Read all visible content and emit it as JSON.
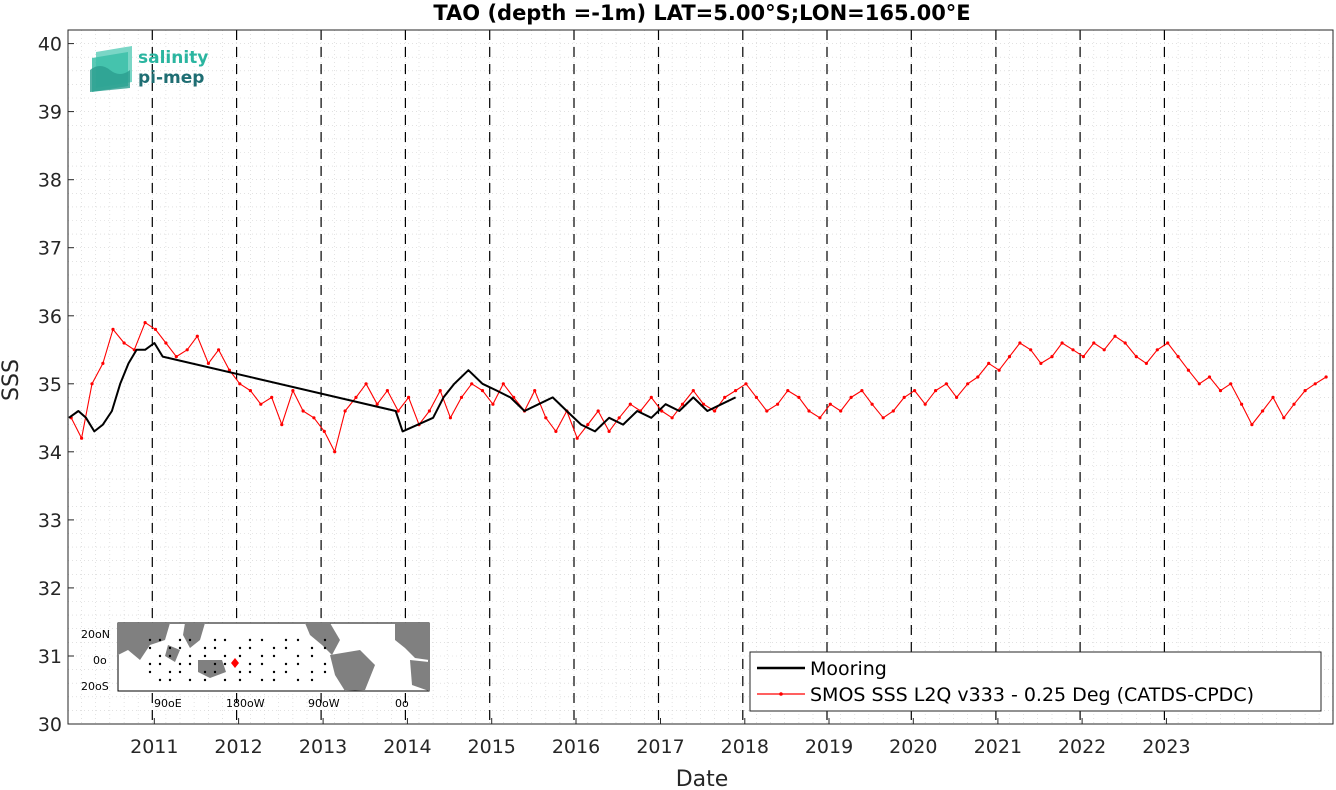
{
  "chart_data": {
    "type": "line",
    "title": "TAO (depth =-1m) LAT=5.00°S;LON=165.00°E",
    "xlabel": "Date",
    "ylabel": "SSS",
    "xlim": [
      "2010-01-01",
      "2024-12-31"
    ],
    "ylim": [
      30,
      40.2
    ],
    "yticks": [
      30,
      31,
      32,
      33,
      34,
      35,
      36,
      37,
      38,
      39,
      40
    ],
    "xtick_dates": [
      "2011-01-01",
      "2012-01-01",
      "2013-01-01",
      "2014-01-01",
      "2015-01-01",
      "2016-01-01",
      "2017-01-01",
      "2018-01-01",
      "2019-01-01",
      "2020-01-01",
      "2021-01-01",
      "2022-01-01",
      "2023-01-01"
    ],
    "xtick_labels": [
      "2011",
      "2012",
      "2013",
      "2014",
      "2015",
      "2016",
      "2017",
      "2018",
      "2019",
      "2020",
      "2021",
      "2022",
      "2023"
    ],
    "year_separators": [
      "2011-01-01",
      "2012-01-01",
      "2013-01-01",
      "2014-01-01",
      "2015-01-01",
      "2016-01-01",
      "2017-01-01",
      "2018-01-01",
      "2019-01-01",
      "2020-01-01",
      "2021-01-01",
      "2022-01-01",
      "2023-01-01"
    ],
    "grid": true,
    "legend_position": "bottom-right",
    "series": [
      {
        "name": "Mooring",
        "color": "#000000",
        "x": [
          "2010-01-05",
          "2010-02-15",
          "2010-03-20",
          "2010-04-25",
          "2010-06-01",
          "2010-07-10",
          "2010-08-15",
          "2010-09-20",
          "2010-10-25",
          "2010-12-01",
          "2011-01-10",
          "2011-02-15",
          "2013-11-20",
          "2013-12-20",
          "2014-05-01",
          "2014-06-15",
          "2014-08-01",
          "2014-10-01",
          "2014-12-01",
          "2015-02-01",
          "2015-04-01",
          "2015-06-01",
          "2015-08-01",
          "2015-10-01",
          "2015-12-01",
          "2016-02-01",
          "2016-04-01",
          "2016-06-01",
          "2016-08-01",
          "2016-10-01",
          "2016-12-01",
          "2017-02-01",
          "2017-04-01",
          "2017-06-01",
          "2017-08-01",
          "2017-10-01",
          "2017-12-01"
        ],
        "values": [
          34.5,
          34.6,
          34.5,
          34.3,
          34.4,
          34.6,
          35.0,
          35.3,
          35.5,
          35.5,
          35.6,
          35.4,
          34.6,
          34.3,
          34.5,
          34.8,
          35.0,
          35.2,
          35.0,
          34.9,
          34.8,
          34.6,
          34.7,
          34.8,
          34.6,
          34.4,
          34.3,
          34.5,
          34.4,
          34.6,
          34.5,
          34.7,
          34.6,
          34.8,
          34.6,
          34.7,
          34.8
        ]
      },
      {
        "name": "SMOS SSS L2Q v333 - 0.25 Deg (CATDS-CPDC)",
        "color": "#ff0000",
        "x": [
          "2010-01-15",
          "2010-03-01",
          "2010-04-15",
          "2010-06-01",
          "2010-07-15",
          "2010-09-01",
          "2010-10-15",
          "2010-12-01",
          "2011-01-15",
          "2011-03-01",
          "2011-04-15",
          "2011-06-01",
          "2011-07-15",
          "2011-09-01",
          "2011-10-15",
          "2011-12-01",
          "2012-01-15",
          "2012-03-01",
          "2012-04-15",
          "2012-06-01",
          "2012-07-15",
          "2012-09-01",
          "2012-10-15",
          "2012-12-01",
          "2013-01-15",
          "2013-03-01",
          "2013-04-15",
          "2013-06-01",
          "2013-07-15",
          "2013-09-01",
          "2013-10-15",
          "2013-12-01",
          "2014-01-15",
          "2014-03-01",
          "2014-04-15",
          "2014-06-01",
          "2014-07-15",
          "2014-09-01",
          "2014-10-15",
          "2014-12-01",
          "2015-01-15",
          "2015-03-01",
          "2015-04-15",
          "2015-06-01",
          "2015-07-15",
          "2015-09-01",
          "2015-10-15",
          "2015-12-01",
          "2016-01-15",
          "2016-03-01",
          "2016-04-15",
          "2016-06-01",
          "2016-07-15",
          "2016-09-01",
          "2016-10-15",
          "2016-12-01",
          "2017-01-15",
          "2017-03-01",
          "2017-04-15",
          "2017-06-01",
          "2017-07-15",
          "2017-09-01",
          "2017-10-15",
          "2017-12-01",
          "2018-01-15",
          "2018-03-01",
          "2018-04-15",
          "2018-06-01",
          "2018-07-15",
          "2018-09-01",
          "2018-10-15",
          "2018-12-01",
          "2019-01-15",
          "2019-03-01",
          "2019-04-15",
          "2019-06-01",
          "2019-07-15",
          "2019-09-01",
          "2019-10-15",
          "2019-12-01",
          "2020-01-15",
          "2020-03-01",
          "2020-04-15",
          "2020-06-01",
          "2020-07-15",
          "2020-09-01",
          "2020-10-15",
          "2020-12-01",
          "2021-01-15",
          "2021-03-01",
          "2021-04-15",
          "2021-06-01",
          "2021-07-15",
          "2021-09-01",
          "2021-10-15",
          "2021-12-01",
          "2022-01-15",
          "2022-03-01",
          "2022-04-15",
          "2022-06-01",
          "2022-07-15",
          "2022-09-01",
          "2022-10-15",
          "2022-12-01",
          "2023-01-15",
          "2023-03-01",
          "2023-04-15",
          "2023-06-01",
          "2023-07-15",
          "2023-09-01",
          "2023-10-15",
          "2023-12-01",
          "2024-01-15",
          "2024-03-01",
          "2024-04-15",
          "2024-06-01",
          "2024-07-15",
          "2024-09-01",
          "2024-10-15",
          "2024-12-01"
        ],
        "values": [
          34.5,
          34.2,
          35.0,
          35.3,
          35.8,
          35.6,
          35.5,
          35.9,
          35.8,
          35.6,
          35.4,
          35.5,
          35.7,
          35.3,
          35.5,
          35.2,
          35.0,
          34.9,
          34.7,
          34.8,
          34.4,
          34.9,
          34.6,
          34.5,
          34.3,
          34.0,
          34.6,
          34.8,
          35.0,
          34.7,
          34.9,
          34.6,
          34.8,
          34.4,
          34.6,
          34.9,
          34.5,
          34.8,
          35.0,
          34.9,
          34.7,
          35.0,
          34.8,
          34.6,
          34.9,
          34.5,
          34.3,
          34.6,
          34.2,
          34.4,
          34.6,
          34.3,
          34.5,
          34.7,
          34.6,
          34.8,
          34.6,
          34.5,
          34.7,
          34.9,
          34.7,
          34.6,
          34.8,
          34.9,
          35.0,
          34.8,
          34.6,
          34.7,
          34.9,
          34.8,
          34.6,
          34.5,
          34.7,
          34.6,
          34.8,
          34.9,
          34.7,
          34.5,
          34.6,
          34.8,
          34.9,
          34.7,
          34.9,
          35.0,
          34.8,
          35.0,
          35.1,
          35.3,
          35.2,
          35.4,
          35.6,
          35.5,
          35.3,
          35.4,
          35.6,
          35.5,
          35.4,
          35.6,
          35.5,
          35.7,
          35.6,
          35.4,
          35.3,
          35.5,
          35.6,
          35.4,
          35.2,
          35.0,
          35.1,
          34.9,
          35.0,
          34.7,
          34.4,
          34.6,
          34.8,
          34.5,
          34.7,
          34.9,
          35.0,
          35.1
        ]
      }
    ],
    "annotations": [
      "20°N",
      "0°",
      "20°S",
      "90°E",
      "180°W",
      "90°W",
      "0°"
    ]
  },
  "logo": {
    "line1": "salinity",
    "line2": "pi-mep"
  },
  "inset_map": {
    "lat_labels": [
      "20oN",
      "0o",
      "20oS"
    ],
    "lon_labels": [
      "90oE",
      "180oW",
      "90oW",
      "0o"
    ],
    "ocean_color": "#ffffff",
    "land_color": "#808080",
    "marker_color": "#ff0000"
  }
}
